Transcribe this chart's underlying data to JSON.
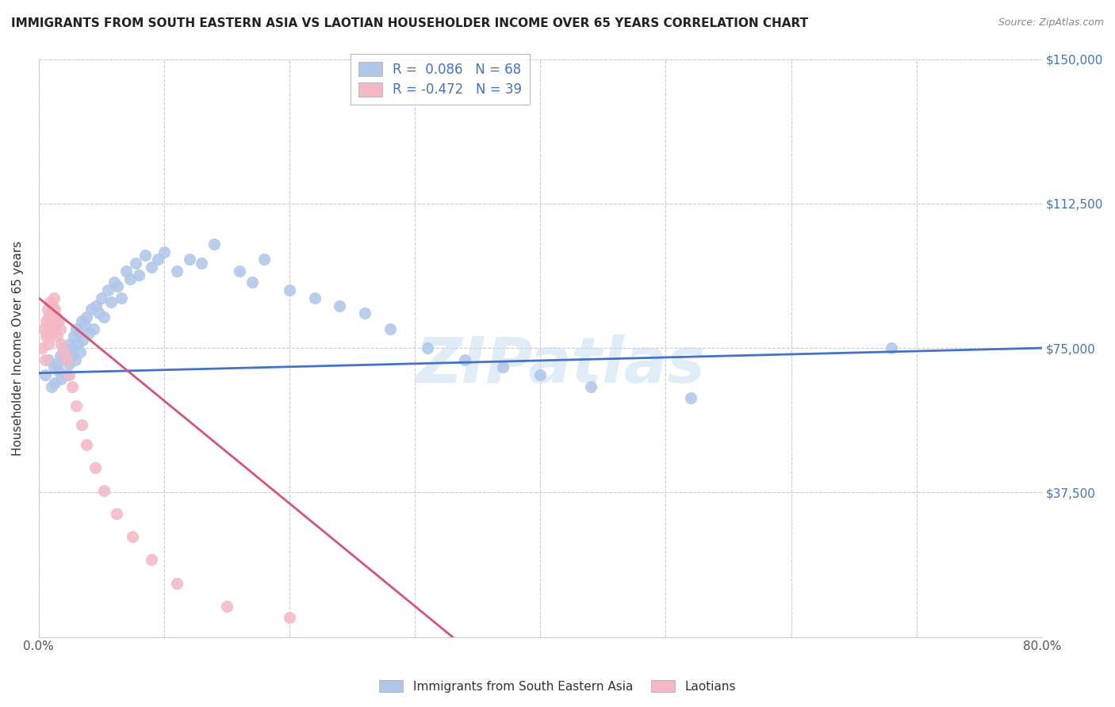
{
  "title": "IMMIGRANTS FROM SOUTH EASTERN ASIA VS LAOTIAN HOUSEHOLDER INCOME OVER 65 YEARS CORRELATION CHART",
  "source": "Source: ZipAtlas.com",
  "ylabel": "Householder Income Over 65 years",
  "r_blue": 0.086,
  "n_blue": 68,
  "r_pink": -0.472,
  "n_pink": 39,
  "xlim": [
    0.0,
    0.8
  ],
  "ylim": [
    0,
    150000
  ],
  "yticks": [
    0,
    37500,
    75000,
    112500,
    150000
  ],
  "ytick_labels": [
    "",
    "$37,500",
    "$75,000",
    "$112,500",
    "$150,000"
  ],
  "blue_color": "#aec6e8",
  "pink_color": "#f4b8c4",
  "blue_line_color": "#4472c4",
  "pink_line_color": "#d4547a",
  "legend_label_blue": "Immigrants from South Eastern Asia",
  "legend_label_pink": "Laotians",
  "watermark": "ZIPatlas",
  "blue_x": [
    0.005,
    0.008,
    0.01,
    0.012,
    0.013,
    0.015,
    0.016,
    0.017,
    0.018,
    0.019,
    0.02,
    0.021,
    0.022,
    0.022,
    0.023,
    0.024,
    0.025,
    0.026,
    0.027,
    0.028,
    0.029,
    0.03,
    0.031,
    0.032,
    0.033,
    0.034,
    0.035,
    0.037,
    0.038,
    0.04,
    0.042,
    0.044,
    0.046,
    0.048,
    0.05,
    0.052,
    0.055,
    0.058,
    0.06,
    0.063,
    0.066,
    0.07,
    0.073,
    0.077,
    0.08,
    0.085,
    0.09,
    0.095,
    0.1,
    0.11,
    0.12,
    0.13,
    0.14,
    0.16,
    0.17,
    0.18,
    0.2,
    0.22,
    0.24,
    0.26,
    0.28,
    0.31,
    0.34,
    0.37,
    0.4,
    0.44,
    0.52,
    0.68
  ],
  "blue_y": [
    68000,
    72000,
    65000,
    70000,
    66000,
    71000,
    69000,
    73000,
    67000,
    74000,
    75000,
    73000,
    72000,
    68000,
    74000,
    71000,
    76000,
    73000,
    75000,
    78000,
    72000,
    80000,
    76000,
    79000,
    74000,
    82000,
    77000,
    81000,
    83000,
    79000,
    85000,
    80000,
    86000,
    84000,
    88000,
    83000,
    90000,
    87000,
    92000,
    91000,
    88000,
    95000,
    93000,
    97000,
    94000,
    99000,
    96000,
    98000,
    100000,
    95000,
    98000,
    97000,
    102000,
    95000,
    92000,
    98000,
    90000,
    88000,
    86000,
    84000,
    80000,
    75000,
    72000,
    70000,
    68000,
    65000,
    62000,
    75000
  ],
  "pink_x": [
    0.003,
    0.004,
    0.005,
    0.006,
    0.006,
    0.007,
    0.007,
    0.008,
    0.008,
    0.009,
    0.009,
    0.01,
    0.01,
    0.011,
    0.011,
    0.012,
    0.012,
    0.013,
    0.013,
    0.014,
    0.015,
    0.016,
    0.017,
    0.018,
    0.02,
    0.022,
    0.024,
    0.027,
    0.03,
    0.034,
    0.038,
    0.045,
    0.052,
    0.062,
    0.075,
    0.09,
    0.11,
    0.15,
    0.2
  ],
  "pink_y": [
    75000,
    80000,
    72000,
    82000,
    78000,
    85000,
    79000,
    83000,
    76000,
    87000,
    82000,
    84000,
    79000,
    86000,
    81000,
    88000,
    83000,
    85000,
    80000,
    83000,
    78000,
    82000,
    80000,
    76000,
    74000,
    72000,
    68000,
    65000,
    60000,
    55000,
    50000,
    44000,
    38000,
    32000,
    26000,
    20000,
    14000,
    8000,
    5000
  ],
  "blue_line_x0": 0.0,
  "blue_line_y0": 68500,
  "blue_line_x1": 0.8,
  "blue_line_y1": 75000,
  "pink_line_x0": 0.0,
  "pink_line_y0": 88000,
  "pink_line_x1": 0.33,
  "pink_line_y1": 0
}
